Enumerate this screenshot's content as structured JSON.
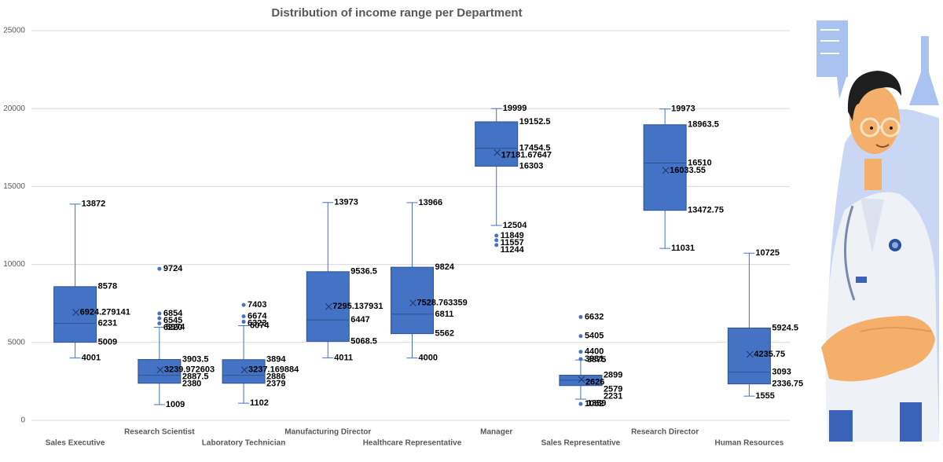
{
  "chart_data": {
    "type": "boxplot",
    "title": "Distribution of income range per Department",
    "ylim": [
      0,
      25000
    ],
    "yticks": [
      0,
      5000,
      10000,
      15000,
      20000,
      25000
    ],
    "ytick_labels": [
      "0",
      "5000",
      "10000",
      "15000",
      "20000",
      "25000"
    ],
    "grid": true,
    "box_color": "#4472c4",
    "series": [
      {
        "category": "Sales Executive",
        "min": 4001,
        "q1": 5009,
        "median": 6231,
        "q3": 8578,
        "max": 13872,
        "mean": 6924.279141,
        "mean_label": "6924.279141",
        "outliers": []
      },
      {
        "category": "Research Scientist",
        "min": 1009,
        "q1": 2380,
        "median": 2887.5,
        "q3": 3903.5,
        "max": 5974,
        "mean": 3239.972603,
        "mean_label": "3239.972603",
        "outliers": [
          9724,
          6854,
          6545,
          6220
        ]
      },
      {
        "category": "Laboratory Technician",
        "min": 1102,
        "q1": 2379,
        "median": 2886,
        "q3": 3894,
        "max": 6074,
        "mean": 3237.169884,
        "mean_label": "3237.169884",
        "outliers": [
          7403,
          6674,
          6323
        ]
      },
      {
        "category": "Manufacturing Director",
        "min": 4011,
        "q1": 5068.5,
        "median": 6447,
        "q3": 9536.5,
        "max": 13973,
        "mean": 7295.137931,
        "mean_label": "7295.137931",
        "outliers": []
      },
      {
        "category": "Healthcare Representative",
        "min": 4000,
        "q1": 5562,
        "median": 6811,
        "q3": 9824,
        "max": 13966,
        "mean": 7528.763359,
        "mean_label": "7528.763359",
        "outliers": []
      },
      {
        "category": "Manager",
        "min": 12504,
        "q1": 16303,
        "median": 17454.5,
        "q3": 19152.5,
        "max": 19999,
        "mean": 17181.67647,
        "mean_label": "17181.67647",
        "outliers": [
          11849,
          11557,
          11244
        ]
      },
      {
        "category": "Sales Representative",
        "min": 1359,
        "q1": 2231,
        "median": 2579,
        "q3": 2899,
        "max": 3875,
        "mean": 2626,
        "mean_label": "2626",
        "outliers": [
          6632,
          5405,
          4400,
          3931,
          1052
        ]
      },
      {
        "category": "Research Director",
        "min": 11031,
        "q1": 13472.75,
        "median": 16510,
        "q3": 18963.5,
        "max": 19973,
        "mean": 16033.55,
        "mean_label": "16033.55",
        "outliers": []
      },
      {
        "category": "Human Resources",
        "min": 1555,
        "q1": 2336.75,
        "median": 3093,
        "q3": 5924.5,
        "max": 10725,
        "mean": 4235.75,
        "mean_label": "4235.75",
        "outliers": []
      }
    ]
  }
}
